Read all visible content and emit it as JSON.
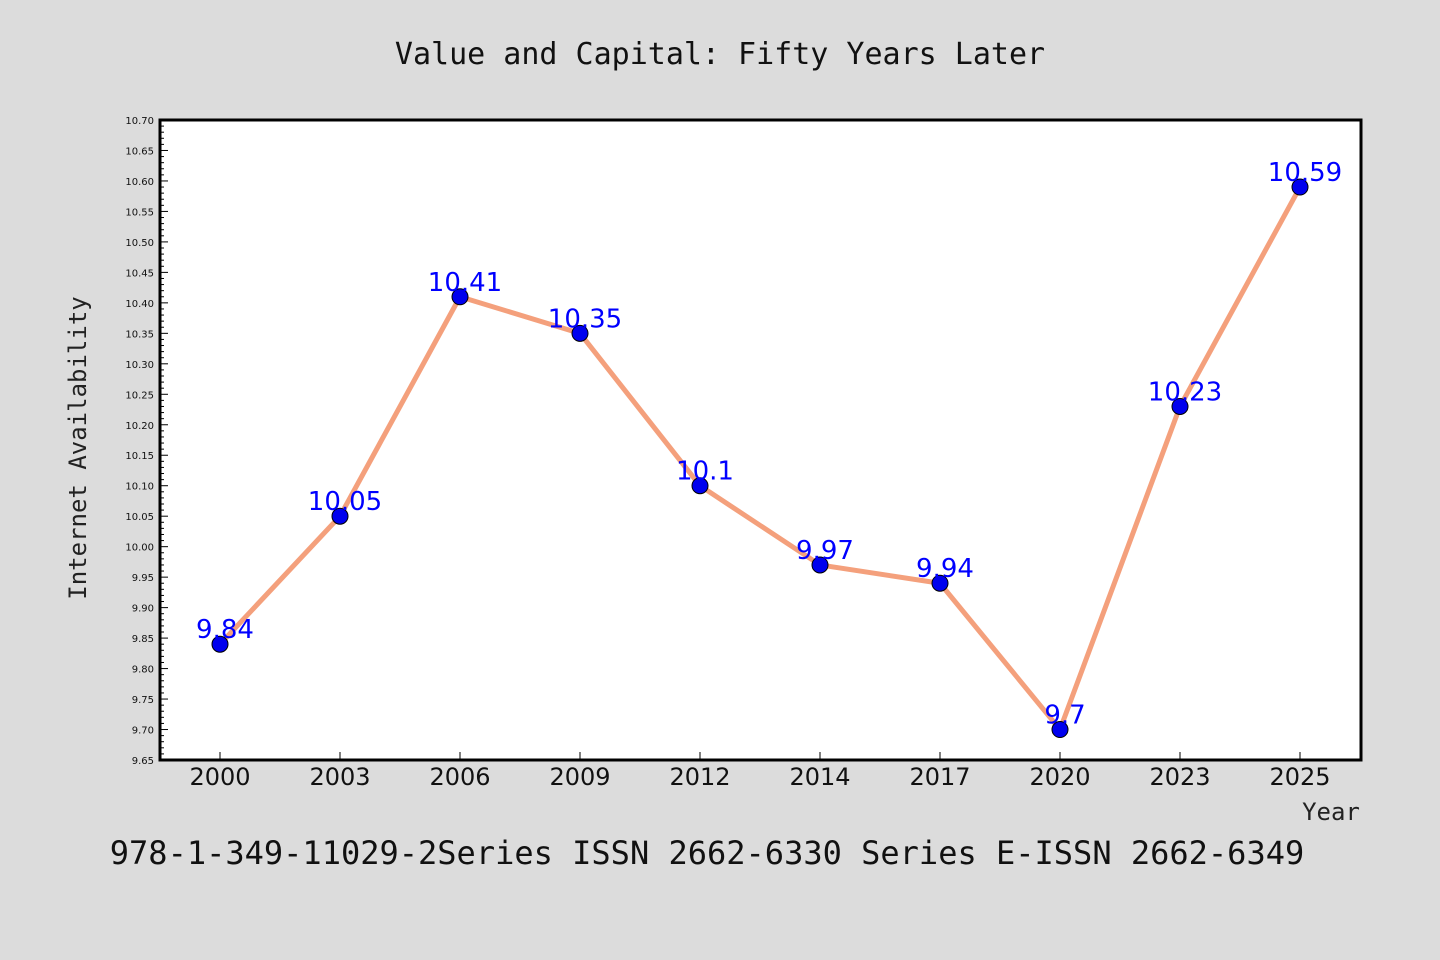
{
  "colors": {
    "background": "#dcdcdc",
    "plot_background": "#ffffff",
    "line": "#f4a07c",
    "marker": "#0000ee",
    "data_label": "#0000ff"
  },
  "footer_text": "978-1-349-11029-2Series ISSN 2662-6330 Series E-ISSN 2662-6349",
  "chart_data": {
    "type": "line",
    "title": "Value and Capital: Fifty Years Later",
    "xlabel": "Year",
    "ylabel": "Internet Availability",
    "categories": [
      "2000",
      "2003",
      "2006",
      "2009",
      "2012",
      "2014",
      "2017",
      "2020",
      "2023",
      "2025"
    ],
    "series": [
      {
        "values": [
          9.84,
          10.05,
          10.41,
          10.35,
          10.1,
          9.97,
          9.94,
          9.7,
          10.23,
          10.59
        ],
        "labels": [
          "9.84",
          "10.05",
          "10.41",
          "10.35",
          "10.1",
          "9.97",
          "9.94",
          "9.7",
          "10.23",
          "10.59"
        ]
      }
    ],
    "ylim": [
      9.65,
      10.7
    ],
    "ytick_step": 0.05,
    "yticks": [
      "9.65",
      "9.70",
      "9.75",
      "9.80",
      "9.85",
      "9.90",
      "9.95",
      "10.00",
      "10.05",
      "10.10",
      "10.15",
      "10.20",
      "10.25",
      "10.30",
      "10.35",
      "10.40",
      "10.45",
      "10.50",
      "10.55",
      "10.60",
      "10.65",
      "10.70"
    ],
    "grid": false,
    "legend": "none"
  }
}
